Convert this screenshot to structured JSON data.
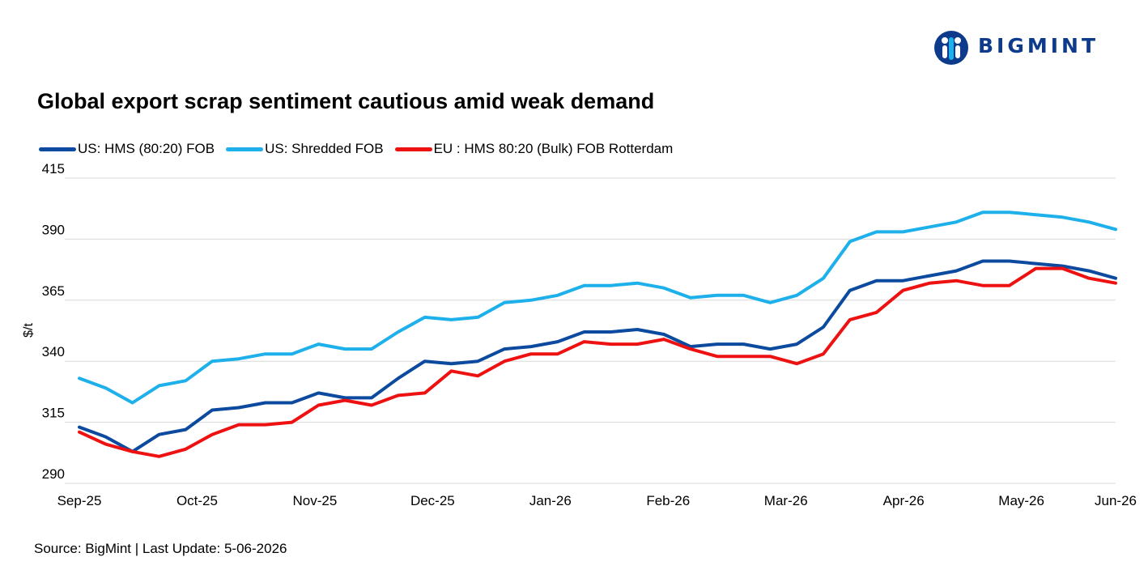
{
  "brand": {
    "logo_text": "BIGMINT",
    "logo_icon": "people-globe-icon",
    "logo_color": "#0d3a8a"
  },
  "source": "Source: BigMint | Last Update: 5-06-2026",
  "chart_data": {
    "type": "line",
    "title": "Global export scrap sentiment cautious amid weak demand",
    "ylabel": "$/t",
    "xlabel": "",
    "ylim": [
      290,
      415
    ],
    "yticks": [
      290,
      315,
      340,
      365,
      390,
      415
    ],
    "grid": true,
    "legend_position": "top-left",
    "xtick_labels": [
      "Sep-25",
      "Oct-25",
      "Nov-25",
      "Dec-25",
      "Jan-26",
      "Feb-26",
      "Mar-26",
      "Apr-26",
      "May-26",
      "Jun-26"
    ],
    "xtick_index": [
      0,
      5,
      10,
      15,
      20,
      25,
      30,
      35,
      40,
      44
    ],
    "series": [
      {
        "name": "US: HMS (80:20) FOB",
        "color": "#0b4a9e",
        "values": [
          313,
          309,
          303,
          310,
          312,
          320,
          321,
          323,
          323,
          327,
          325,
          325,
          333,
          340,
          339,
          340,
          345,
          346,
          348,
          352,
          352,
          353,
          351,
          346,
          347,
          347,
          345,
          347,
          354,
          369,
          373,
          373,
          375,
          377,
          381,
          381,
          380,
          379,
          377,
          374
        ]
      },
      {
        "name": "US: Shredded FOB",
        "color": "#1eb0ea",
        "values": [
          333,
          329,
          323,
          330,
          332,
          340,
          341,
          343,
          343,
          347,
          345,
          345,
          352,
          358,
          357,
          358,
          364,
          365,
          367,
          371,
          371,
          372,
          370,
          366,
          367,
          367,
          364,
          367,
          374,
          389,
          393,
          393,
          395,
          397,
          401,
          401,
          400,
          399,
          397,
          394
        ]
      },
      {
        "name": "EU : HMS 80:20 (Bulk) FOB Rotterdam",
        "color": "#ee1111",
        "values": [
          311,
          306,
          303,
          301,
          304,
          310,
          314,
          314,
          315,
          322,
          324,
          322,
          326,
          327,
          336,
          334,
          340,
          343,
          343,
          348,
          347,
          347,
          349,
          345,
          342,
          342,
          342,
          339,
          343,
          357,
          360,
          369,
          372,
          373,
          371,
          371,
          378,
          378,
          374,
          372
        ]
      }
    ]
  }
}
